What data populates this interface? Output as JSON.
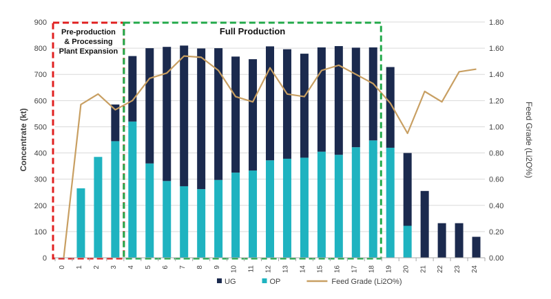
{
  "chart_data": {
    "type": "bar",
    "stacked": true,
    "categories": [
      "0",
      "1",
      "2",
      "3",
      "4",
      "5",
      "6",
      "7",
      "8",
      "9",
      "10",
      "11",
      "12",
      "13",
      "14",
      "15",
      "16",
      "17",
      "18",
      "19",
      "20",
      "21",
      "22",
      "23",
      "24"
    ],
    "series": [
      {
        "name": "OP",
        "axis": "left",
        "color": "#1fb3c0",
        "values": [
          0,
          265,
          385,
          445,
          520,
          360,
          293,
          273,
          262,
          297,
          325,
          333,
          372,
          378,
          382,
          405,
          393,
          422,
          448,
          420,
          122,
          0,
          0,
          0,
          0
        ]
      },
      {
        "name": "UG",
        "axis": "left",
        "color": "#1b2a4e",
        "values": [
          0,
          0,
          0,
          140,
          250,
          440,
          512,
          537,
          537,
          503,
          443,
          425,
          435,
          418,
          397,
          398,
          415,
          380,
          355,
          308,
          278,
          255,
          132,
          132,
          80
        ]
      },
      {
        "name": "Feed Grade (Li2O%)",
        "axis": "right",
        "type": "line",
        "color": "#c89f62",
        "values": [
          0.0,
          1.17,
          1.25,
          1.13,
          1.2,
          1.37,
          1.41,
          1.54,
          1.53,
          1.43,
          1.23,
          1.19,
          1.45,
          1.25,
          1.23,
          1.43,
          1.47,
          1.4,
          1.33,
          1.18,
          0.95,
          1.27,
          1.19,
          1.42,
          1.44
        ]
      }
    ],
    "ylabel": "Concentrate  (kt)",
    "y2label": "Feed Grade (Li2O%)",
    "ylim": [
      0,
      900
    ],
    "y2lim": [
      0,
      1.8
    ],
    "yticks": [
      "0",
      "100",
      "200",
      "300",
      "400",
      "500",
      "600",
      "700",
      "800",
      "900"
    ],
    "y2ticks": [
      "0.00",
      "0.20",
      "0.40",
      "0.60",
      "0.80",
      "1.00",
      "1.20",
      "1.40",
      "1.60",
      "1.80"
    ],
    "legend_position": "bottom",
    "legend": [
      {
        "label": "UG",
        "color": "#1b2a4e",
        "kind": "box"
      },
      {
        "label": "OP",
        "color": "#1fb3c0",
        "kind": "box"
      },
      {
        "label": "Feed Grade (Li2O%)",
        "color": "#c89f62",
        "kind": "line"
      }
    ],
    "annotations": [
      {
        "id": "preproduction",
        "lines": [
          "Pre-production",
          "& Processing",
          "Plant Expansion"
        ],
        "color": "#e02020",
        "from_category": "0",
        "to_category": "3"
      },
      {
        "id": "fullproduction",
        "lines": [
          "Full Production"
        ],
        "color": "#22a94a",
        "from_category": "4",
        "to_category": "18"
      }
    ]
  }
}
